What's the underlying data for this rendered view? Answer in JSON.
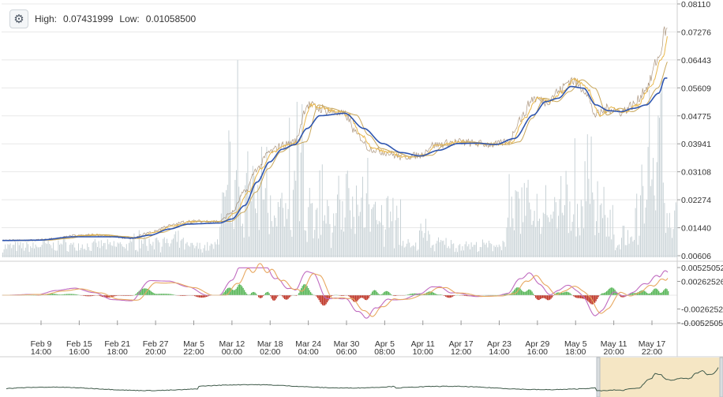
{
  "header": {
    "settings_icon": "gear-icon",
    "high_label": "High:",
    "high_value": "0.07431999",
    "low_label": "Low:",
    "low_value": "0.01058500"
  },
  "chart_data": [
    {
      "type": "line",
      "title": "",
      "ylim": [
        0.00606,
        0.0811
      ],
      "y_ticks": [
        "0.08110",
        "0.07276",
        "0.06443",
        "0.05609",
        "0.04775",
        "0.03941",
        "0.03108",
        "0.02274",
        "0.01440",
        "0.00606"
      ],
      "x_ticks": [
        {
          "date": "Feb 9",
          "time": "14:00"
        },
        {
          "date": "Feb 15",
          "time": "16:00"
        },
        {
          "date": "Feb 21",
          "time": "18:00"
        },
        {
          "date": "Feb 27",
          "time": "20:00"
        },
        {
          "date": "Mar 5",
          "time": "22:00"
        },
        {
          "date": "Mar 12",
          "time": "00:00"
        },
        {
          "date": "Mar 18",
          "time": "02:00"
        },
        {
          "date": "Mar 24",
          "time": "04:00"
        },
        {
          "date": "Mar 30",
          "time": "06:00"
        },
        {
          "date": "Apr 5",
          "time": "08:00"
        },
        {
          "date": "Apr 11",
          "time": "10:00"
        },
        {
          "date": "Apr 17",
          "time": "12:00"
        },
        {
          "date": "Apr 23",
          "time": "14:00"
        },
        {
          "date": "Apr 29",
          "time": "16:00"
        },
        {
          "date": "May 5",
          "time": "18:00"
        },
        {
          "date": "May 11",
          "time": "20:00"
        },
        {
          "date": "May 17",
          "time": "22:00"
        }
      ],
      "price_points": [
        [
          "Feb 4",
          0.0106
        ],
        [
          "Feb 9",
          0.0107
        ],
        [
          "Feb 12",
          0.0112
        ],
        [
          "Feb 15",
          0.012
        ],
        [
          "Feb 18",
          0.0123
        ],
        [
          "Feb 21",
          0.0118
        ],
        [
          "Feb 24",
          0.0112
        ],
        [
          "Feb 27",
          0.013
        ],
        [
          "Mar 2",
          0.015
        ],
        [
          "Mar 5",
          0.0163
        ],
        [
          "Mar 8",
          0.0163
        ],
        [
          "Mar 10",
          0.0163
        ],
        [
          "Mar 12",
          0.019
        ],
        [
          "Mar 14",
          0.025
        ],
        [
          "Mar 16",
          0.032
        ],
        [
          "Mar 18",
          0.037
        ],
        [
          "Mar 20",
          0.039
        ],
        [
          "Mar 22",
          0.04
        ],
        [
          "Mar 24",
          0.051
        ],
        [
          "Mar 26",
          0.05
        ],
        [
          "Mar 28",
          0.049
        ],
        [
          "Mar 30",
          0.048
        ],
        [
          "Apr 1",
          0.042
        ],
        [
          "Apr 3",
          0.038
        ],
        [
          "Apr 5",
          0.037
        ],
        [
          "Apr 8",
          0.0355
        ],
        [
          "Apr 11",
          0.036
        ],
        [
          "Apr 13",
          0.039
        ],
        [
          "Apr 17",
          0.04
        ],
        [
          "Apr 20",
          0.0395
        ],
        [
          "Apr 23",
          0.0392
        ],
        [
          "Apr 25",
          0.04
        ],
        [
          "Apr 27",
          0.047
        ],
        [
          "Apr 29",
          0.053
        ],
        [
          "May 1",
          0.052
        ],
        [
          "May 3",
          0.055
        ],
        [
          "May 5",
          0.0585
        ],
        [
          "May 7",
          0.056
        ],
        [
          "May 9",
          0.048
        ],
        [
          "May 11",
          0.05
        ],
        [
          "May 13",
          0.049
        ],
        [
          "May 15",
          0.051
        ],
        [
          "May 17",
          0.056
        ],
        [
          "May 19",
          0.065
        ],
        [
          "May 20",
          0.073
        ]
      ],
      "ma_slow_points": [
        [
          "Feb 4",
          0.0106
        ],
        [
          "Feb 9",
          0.0107
        ],
        [
          "Feb 15",
          0.0117
        ],
        [
          "Feb 21",
          0.0117
        ],
        [
          "Feb 24",
          0.0113
        ],
        [
          "Feb 27",
          0.0122
        ],
        [
          "Mar 2",
          0.014
        ],
        [
          "Mar 5",
          0.0155
        ],
        [
          "Mar 10",
          0.0158
        ],
        [
          "Mar 12",
          0.017
        ],
        [
          "Mar 14",
          0.021
        ],
        [
          "Mar 16",
          0.028
        ],
        [
          "Mar 18",
          0.034
        ],
        [
          "Mar 20",
          0.0378
        ],
        [
          "Mar 22",
          0.0392
        ],
        [
          "Mar 24",
          0.044
        ],
        [
          "Mar 26",
          0.0478
        ],
        [
          "Mar 30",
          0.0485
        ],
        [
          "Apr 2",
          0.044
        ],
        [
          "Apr 5",
          0.0395
        ],
        [
          "Apr 8",
          0.0368
        ],
        [
          "Apr 11",
          0.0358
        ],
        [
          "Apr 14",
          0.0375
        ],
        [
          "Apr 17",
          0.0395
        ],
        [
          "Apr 20",
          0.0396
        ],
        [
          "Apr 23",
          0.0392
        ],
        [
          "Apr 26",
          0.041
        ],
        [
          "Apr 29",
          0.048
        ],
        [
          "May 1",
          0.052
        ],
        [
          "May 3",
          0.053
        ],
        [
          "May 5",
          0.0565
        ],
        [
          "May 7",
          0.056
        ],
        [
          "May 9",
          0.051
        ],
        [
          "May 11",
          0.0493
        ],
        [
          "May 13",
          0.049
        ],
        [
          "May 15",
          0.05
        ],
        [
          "May 17",
          0.051
        ],
        [
          "May 19",
          0.0545
        ],
        [
          "May 20",
          0.059
        ]
      ],
      "volume_note": "histogram of trading volume behind price"
    },
    {
      "type": "line",
      "title": "",
      "ylim": [
        -0.0052505,
        0.0052505
      ],
      "y_ticks": [
        "0.00525052",
        "0.00262526",
        "-0.00262526",
        "-0.00525052"
      ],
      "series": [
        {
          "name": "",
          "color": "#c06bc0"
        },
        {
          "name": "",
          "color": "#e8a860"
        }
      ],
      "histogram_colors": {
        "positive": "#5cb85c",
        "negative": "#c0392b"
      }
    }
  ],
  "navigator": {
    "has_selection": true,
    "selection_color": "#f5e6c4"
  },
  "colors": {
    "price": "#e8b64a",
    "ma_fast": "#c9a75a",
    "ma_slow": "#2f56b0",
    "volume": "#c8d2d6",
    "grid": "#e8e8e8",
    "axis": "#999999"
  }
}
